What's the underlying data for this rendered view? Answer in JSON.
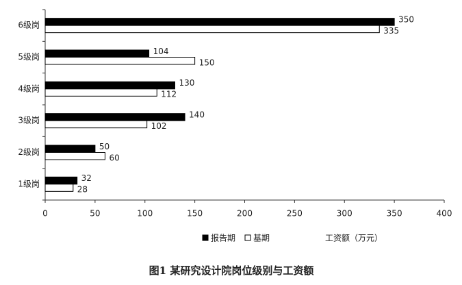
{
  "chart_data": {
    "type": "barh",
    "title": "图1 某研究设计院岗位级别与工资额",
    "x_label": "工资额（万元）",
    "categories": [
      "1级岗",
      "2级岗",
      "3级岗",
      "4级岗",
      "5级岗",
      "6级岗"
    ],
    "series": [
      {
        "name": "报告期",
        "color": "#000000",
        "values": [
          32,
          50,
          140,
          130,
          104,
          350
        ]
      },
      {
        "name": "基期",
        "color": "#ffffff",
        "values": [
          28,
          60,
          102,
          112,
          150,
          335
        ]
      }
    ],
    "xlim": [
      0,
      400
    ],
    "xticks": [
      0,
      50,
      100,
      150,
      200,
      250,
      300,
      350,
      400
    ]
  }
}
